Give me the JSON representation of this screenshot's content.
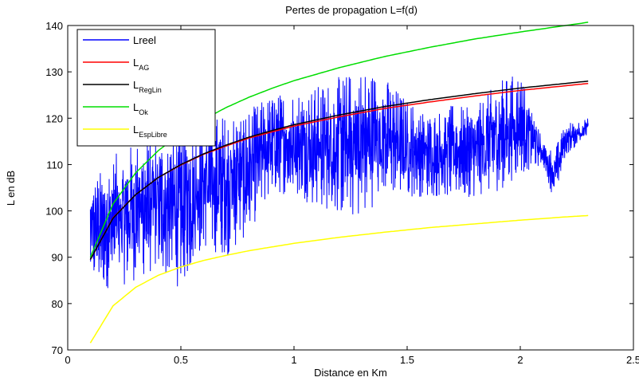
{
  "chart_data": {
    "type": "line",
    "title": "Pertes de propagation L=f(d)",
    "xlabel": "Distance en Km",
    "ylabel": "L en dB",
    "xlim": [
      0,
      2.5
    ],
    "ylim": [
      70,
      140
    ],
    "xticks": [
      0,
      0.5,
      1,
      1.5,
      2,
      2.5
    ],
    "xtick_labels": [
      "0",
      "0.5",
      "1",
      "1.5",
      "2",
      "2.5"
    ],
    "yticks": [
      70,
      80,
      90,
      100,
      110,
      120,
      130,
      140
    ],
    "ytick_labels": [
      "70",
      "80",
      "90",
      "100",
      "110",
      "120",
      "130",
      "140"
    ],
    "grid": false,
    "legend_position": "top-left",
    "series": [
      {
        "name": "Lreel",
        "legend_main": "Lreel",
        "legend_sub": "",
        "color": "#0000ff",
        "kind": "noisy",
        "x": [
          0.1,
          0.2,
          0.3,
          0.4,
          0.5,
          0.6,
          0.7,
          0.8,
          0.9,
          1.0,
          1.1,
          1.2,
          1.3,
          1.4,
          1.5,
          1.6,
          1.7,
          1.8,
          1.9,
          2.0,
          2.1,
          2.15,
          2.2,
          2.3
        ],
        "y_min": [
          84,
          83,
          85,
          87,
          83,
          92,
          90,
          95,
          104,
          103,
          101,
          99,
          98,
          104,
          103,
          103,
          103,
          103,
          104,
          108,
          110,
          102,
          112,
          116
        ],
        "y_max": [
          106,
          112,
          115,
          116,
          118,
          120,
          121,
          122,
          125,
          126,
          127,
          129,
          131,
          129,
          124,
          121,
          123,
          122,
          128,
          130,
          115,
          113,
          119,
          120
        ]
      },
      {
        "name": "L_AG",
        "legend_main": "L",
        "legend_sub": "AG",
        "color": "#ff0000",
        "kind": "curve",
        "x": [
          0.1,
          0.2,
          0.3,
          0.4,
          0.5,
          0.6,
          0.7,
          0.8,
          0.9,
          1.0,
          1.2,
          1.4,
          1.6,
          1.8,
          2.0,
          2.2,
          2.3
        ],
        "y": [
          89.5,
          98.5,
          103.5,
          107.2,
          109.9,
          112.2,
          114.0,
          115.7,
          117.0,
          118.3,
          120.3,
          122.1,
          123.5,
          124.8,
          126.0,
          127.0,
          127.5
        ]
      },
      {
        "name": "L_RegLin",
        "legend_main": "L",
        "legend_sub": "RegLin",
        "color": "#000000",
        "kind": "curve",
        "x": [
          0.1,
          0.2,
          0.3,
          0.4,
          0.5,
          0.6,
          0.7,
          0.8,
          0.9,
          1.0,
          1.2,
          1.4,
          1.6,
          1.8,
          2.0,
          2.2,
          2.3
        ],
        "y": [
          89.5,
          98.4,
          103.5,
          107.2,
          110.0,
          112.3,
          114.2,
          115.9,
          117.3,
          118.6,
          120.7,
          122.5,
          124.0,
          125.3,
          126.5,
          127.5,
          128.0
        ]
      },
      {
        "name": "L_Ok",
        "legend_main": "L",
        "legend_sub": "Ok",
        "color": "#00dd00",
        "kind": "curve",
        "x": [
          0.1,
          0.2,
          0.3,
          0.4,
          0.5,
          0.6,
          0.7,
          0.8,
          0.9,
          1.0,
          1.2,
          1.4,
          1.6,
          1.8,
          2.0,
          2.2,
          2.3
        ],
        "y": [
          90.0,
          101.5,
          108.2,
          113.0,
          116.7,
          119.7,
          122.3,
          124.5,
          126.4,
          128.1,
          130.9,
          133.3,
          135.3,
          137.1,
          138.6,
          140.0,
          140.7
        ]
      },
      {
        "name": "L_EspLibre",
        "legend_main": "L",
        "legend_sub": "EspLibre",
        "color": "#ffff00",
        "kind": "curve",
        "x": [
          0.1,
          0.2,
          0.3,
          0.4,
          0.5,
          0.6,
          0.7,
          0.8,
          0.9,
          1.0,
          1.2,
          1.4,
          1.6,
          1.8,
          2.0,
          2.2,
          2.3
        ],
        "y": [
          71.5,
          79.5,
          83.5,
          86.1,
          87.9,
          89.3,
          90.4,
          91.4,
          92.2,
          93.0,
          94.3,
          95.4,
          96.4,
          97.2,
          98.0,
          98.7,
          99.0
        ]
      }
    ]
  }
}
